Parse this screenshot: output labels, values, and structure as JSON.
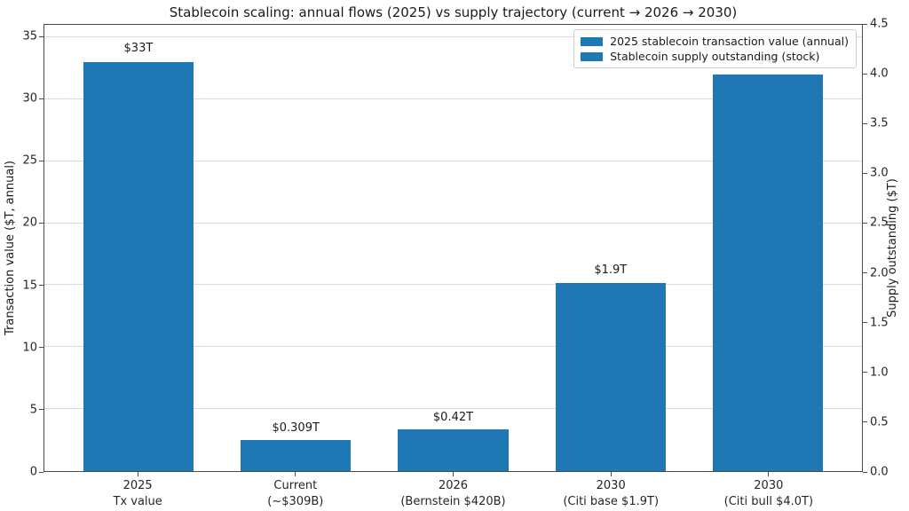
{
  "chart_data": {
    "type": "bar",
    "title": "Stablecoin scaling: annual flows (2025) vs supply trajectory (current → 2026 → 2030)",
    "left_axis": {
      "label": "Transaction value ($T, annual)",
      "ticks": [
        0,
        5,
        10,
        15,
        20,
        25,
        30,
        35
      ],
      "range": [
        0,
        36
      ]
    },
    "right_axis": {
      "label": "Supply outstanding ($T)",
      "ticks": [
        0,
        0.5,
        1,
        1.5,
        2,
        2.5,
        3,
        3.5,
        4,
        4.5
      ],
      "range": [
        0,
        4.5
      ]
    },
    "legend": {
      "position": "upper right",
      "items": [
        {
          "label": "2025 stablecoin transaction value (annual)",
          "color": "#1f77b4"
        },
        {
          "label": "Stablecoin supply outstanding (stock)",
          "color": "#1f77b4"
        }
      ]
    },
    "grid": true,
    "bar_color": "#1f77b4",
    "categories": [
      [
        "2025",
        "Tx value"
      ],
      [
        "Current",
        "(~$309B)"
      ],
      [
        "2026",
        "(Bernstein $420B)"
      ],
      [
        "2030",
        "(Citi base $1.9T)"
      ],
      [
        "2030",
        "(Citi bull $4.0T)"
      ]
    ],
    "bars": [
      {
        "category": [
          "2025",
          "Tx value"
        ],
        "value": 33,
        "axis": "left",
        "label": "$33T"
      },
      {
        "category": [
          "Current",
          "(~$309B)"
        ],
        "value": 0.309,
        "axis": "right",
        "label": "$0.309T"
      },
      {
        "category": [
          "2026",
          "(Bernstein $420B)"
        ],
        "value": 0.42,
        "axis": "right",
        "label": "$0.42T"
      },
      {
        "category": [
          "2030",
          "(Citi base $1.9T)"
        ],
        "value": 1.9,
        "axis": "right",
        "label": "$1.9T"
      },
      {
        "category": [
          "2030",
          "(Citi bull $4.0T)"
        ],
        "value": 4.0,
        "axis": "right",
        "label": "$4T"
      }
    ],
    "series": [
      {
        "name": "2025 stablecoin transaction value (annual)",
        "axis": "left",
        "values": [
          33,
          null,
          null,
          null,
          null
        ]
      },
      {
        "name": "Stablecoin supply outstanding (stock)",
        "axis": "right",
        "values": [
          null,
          0.309,
          0.42,
          1.9,
          4.0
        ]
      }
    ]
  }
}
